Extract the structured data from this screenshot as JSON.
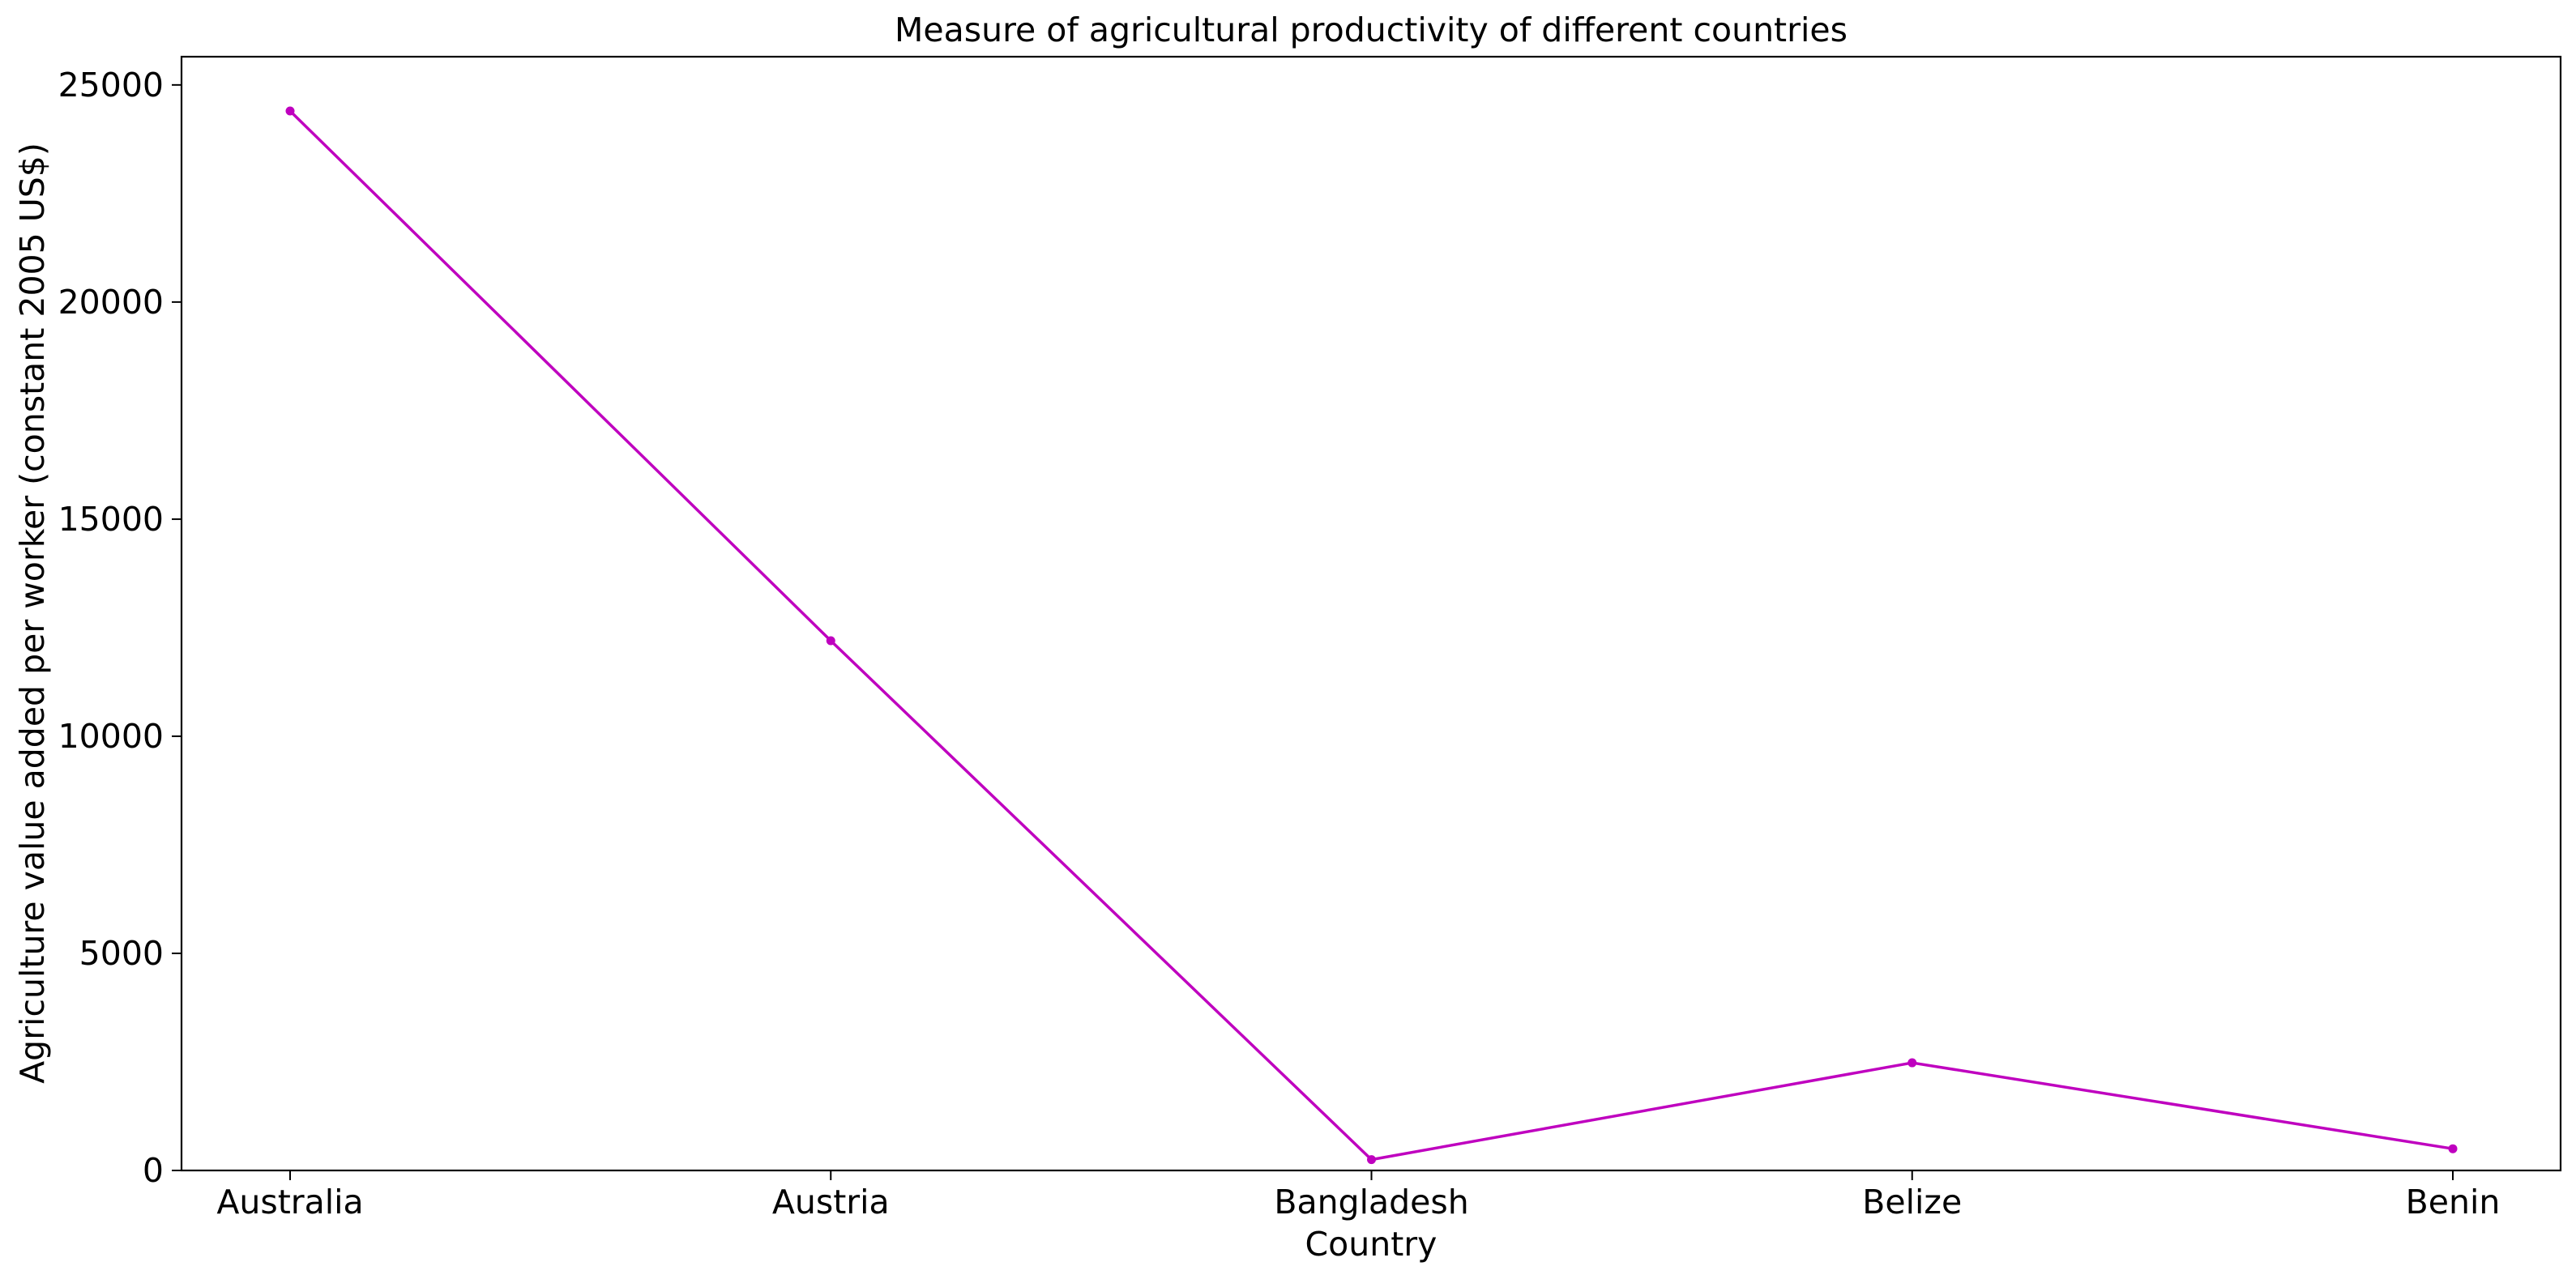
{
  "chart_data": {
    "type": "line",
    "title": "Measure of agricultural productivity of different countries",
    "xlabel": "Country",
    "ylabel": "Agriculture value added per worker (constant 2005 US$)",
    "categories": [
      "Australia",
      "Austria",
      "Bangladesh",
      "Belize",
      "Benin"
    ],
    "series": [
      {
        "values": [
          24400,
          12200,
          250,
          2480,
          500
        ],
        "color": "#bf00bf",
        "marker": "circle"
      }
    ],
    "ylim": [
      0,
      25650
    ],
    "yticks": [
      0,
      5000,
      10000,
      15000,
      20000,
      25000
    ],
    "ytick_labels": [
      "0",
      "5000",
      "10000",
      "15000",
      "20000",
      "25000"
    ],
    "grid": false,
    "legend": "none"
  }
}
